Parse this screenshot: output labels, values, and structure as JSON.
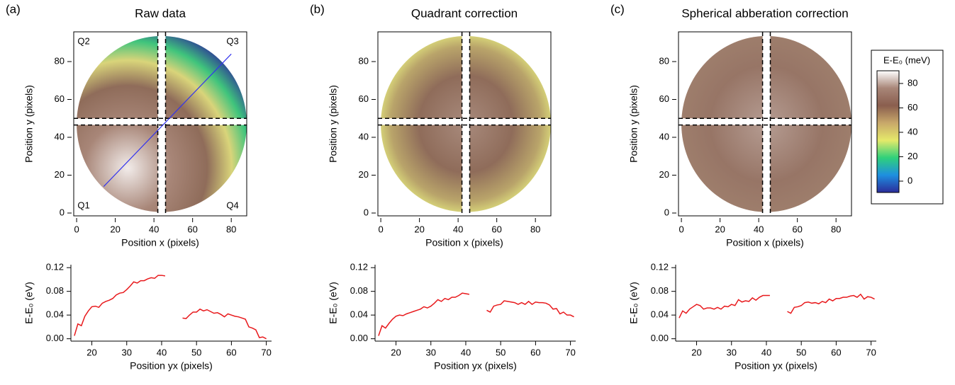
{
  "chart_data": [
    {
      "type": "heatmap",
      "panel_label": "(a)",
      "title": "Raw data",
      "xlabel": "Position x (pixels)",
      "ylabel": "Position y (pixels)",
      "xlim": [
        -1.5,
        88
      ],
      "ylim": [
        -1.5,
        95.7
      ],
      "xticks": [
        0,
        20,
        40,
        60,
        80
      ],
      "yticks": [
        0,
        20,
        40,
        60,
        80
      ],
      "quadrant_labels": [
        "Q1",
        "Q2",
        "Q3",
        "Q4"
      ]
    },
    {
      "type": "line",
      "xlabel": "Position yx (pixels)",
      "ylabel": "E-E₀ (eV)",
      "color": "#e8191c",
      "xlim": [
        14,
        71.5
      ],
      "ylim": [
        -0.004,
        0.125
      ],
      "xticks": [
        20,
        30,
        40,
        50,
        60,
        70
      ],
      "yticks": [
        {
          "value": 0,
          "label": "0.00"
        },
        0.04,
        0.08,
        0.12
      ],
      "x": [
        15,
        16,
        17,
        18,
        19,
        20,
        21,
        22,
        23,
        24,
        25,
        26,
        27,
        28,
        29,
        30,
        31,
        32,
        33,
        34,
        35,
        36,
        37,
        38,
        39,
        40,
        41,
        43,
        46,
        47,
        48,
        49,
        50,
        51,
        52,
        53,
        54,
        55,
        56,
        57,
        58,
        59,
        60,
        61,
        62,
        63,
        64,
        65,
        66,
        67,
        68,
        69,
        70
      ],
      "values": [
        0.005,
        0.025,
        0.022,
        0.038,
        0.047,
        0.054,
        0.055,
        0.053,
        0.06,
        0.063,
        0.065,
        0.068,
        0.074,
        0.077,
        0.078,
        0.083,
        0.089,
        0.096,
        0.094,
        0.098,
        0.098,
        0.101,
        0.103,
        0.102,
        0.107,
        0.107,
        0.106,
        null,
        0.035,
        0.034,
        0.04,
        0.045,
        0.045,
        0.05,
        0.047,
        0.049,
        0.046,
        0.043,
        0.044,
        0.041,
        0.037,
        0.042,
        0.04,
        0.038,
        0.037,
        0.035,
        0.033,
        0.02,
        0.018,
        0.015,
        0.002,
        0.003,
        0
      ]
    },
    {
      "type": "heatmap",
      "panel_label": "(b)",
      "title": "Quadrant correction",
      "xlabel": "Position x (pixels)",
      "ylabel": "Position y (pixels)",
      "xlim": [
        -1.5,
        88
      ],
      "ylim": [
        -1.5,
        95.7
      ],
      "xticks": [
        0,
        20,
        40,
        60,
        80
      ],
      "yticks": [
        0,
        20,
        40,
        60,
        80
      ]
    },
    {
      "type": "line",
      "xlabel": "Position yx (pixels)",
      "ylabel": "E-E₀ (eV)",
      "color": "#e8191c",
      "xlim": [
        14,
        71.5
      ],
      "ylim": [
        -0.004,
        0.125
      ],
      "xticks": [
        20,
        30,
        40,
        50,
        60,
        70
      ],
      "yticks": [
        {
          "value": 0,
          "label": "0.00"
        },
        0.04,
        0.08,
        0.12
      ],
      "x": [
        15,
        16,
        17,
        18,
        19,
        20,
        21,
        22,
        23,
        24,
        25,
        26,
        27,
        28,
        29,
        30,
        31,
        32,
        33,
        34,
        35,
        36,
        37,
        38,
        39,
        40,
        41,
        43,
        46,
        47,
        48,
        49,
        50,
        51,
        52,
        53,
        54,
        55,
        56,
        57,
        58,
        59,
        60,
        61,
        62,
        63,
        64,
        65,
        66,
        67,
        68,
        69,
        70,
        71
      ],
      "values": [
        0.005,
        0.022,
        0.018,
        0.026,
        0.033,
        0.038,
        0.04,
        0.039,
        0.042,
        0.044,
        0.046,
        0.048,
        0.05,
        0.054,
        0.052,
        0.055,
        0.06,
        0.066,
        0.063,
        0.068,
        0.066,
        0.07,
        0.07,
        0.073,
        0.077,
        0.076,
        0.075,
        null,
        0.048,
        0.045,
        0.055,
        0.057,
        0.058,
        0.064,
        0.063,
        0.062,
        0.061,
        0.058,
        0.061,
        0.058,
        0.063,
        0.058,
        0.062,
        0.061,
        0.061,
        0.06,
        0.057,
        0.05,
        0.051,
        0.042,
        0.045,
        0.04,
        0.04,
        0.037
      ]
    },
    {
      "type": "heatmap",
      "panel_label": "(c)",
      "title": "Spherical abberation correction",
      "xlabel": "Position x (pixels)",
      "ylabel": "Position y (pixels)",
      "xlim": [
        -1.5,
        88
      ],
      "ylim": [
        -1.5,
        95.7
      ],
      "xticks": [
        0,
        20,
        40,
        60,
        80
      ],
      "yticks": [
        0,
        20,
        40,
        60,
        80
      ],
      "colorbar": {
        "label": "E-E₀ (meV)",
        "lim": [
          -9.3,
          90.4
        ],
        "ticks": [
          0,
          20,
          40,
          60,
          80
        ],
        "colormap": [
          "#2b2c9a",
          "#1e8fe0",
          "#2fd17a",
          "#e5e96a",
          "#c8a86a",
          "#8a5e4e",
          "#a88678",
          "#ffffff"
        ]
      }
    },
    {
      "type": "line",
      "xlabel": "Position yx (pixels)",
      "ylabel": "E-E₀ (eV)",
      "color": "#e8191c",
      "xlim": [
        14,
        71.5
      ],
      "ylim": [
        -0.004,
        0.125
      ],
      "xticks": [
        20,
        30,
        40,
        50,
        60,
        70
      ],
      "yticks": [
        {
          "value": 0,
          "label": "0.00"
        },
        0.04,
        0.08,
        0.12
      ],
      "x": [
        15,
        16,
        17,
        18,
        19,
        20,
        21,
        22,
        23,
        24,
        25,
        26,
        27,
        28,
        29,
        30,
        31,
        32,
        33,
        34,
        35,
        36,
        37,
        38,
        39,
        40,
        41,
        43,
        46,
        47,
        48,
        49,
        50,
        51,
        52,
        53,
        54,
        55,
        56,
        57,
        58,
        59,
        60,
        61,
        62,
        63,
        64,
        65,
        66,
        67,
        68,
        69,
        70,
        71
      ],
      "values": [
        0.035,
        0.047,
        0.043,
        0.05,
        0.054,
        0.058,
        0.056,
        0.05,
        0.052,
        0.052,
        0.05,
        0.053,
        0.05,
        0.055,
        0.054,
        0.058,
        0.056,
        0.066,
        0.062,
        0.064,
        0.063,
        0.069,
        0.065,
        0.07,
        0.073,
        0.073,
        0.073,
        null,
        0.046,
        0.043,
        0.053,
        0.054,
        0.056,
        0.061,
        0.062,
        0.06,
        0.061,
        0.059,
        0.063,
        0.061,
        0.067,
        0.064,
        0.068,
        0.068,
        0.07,
        0.07,
        0.072,
        0.073,
        0.07,
        0.075,
        0.067,
        0.071,
        0.07,
        0.067
      ]
    }
  ]
}
